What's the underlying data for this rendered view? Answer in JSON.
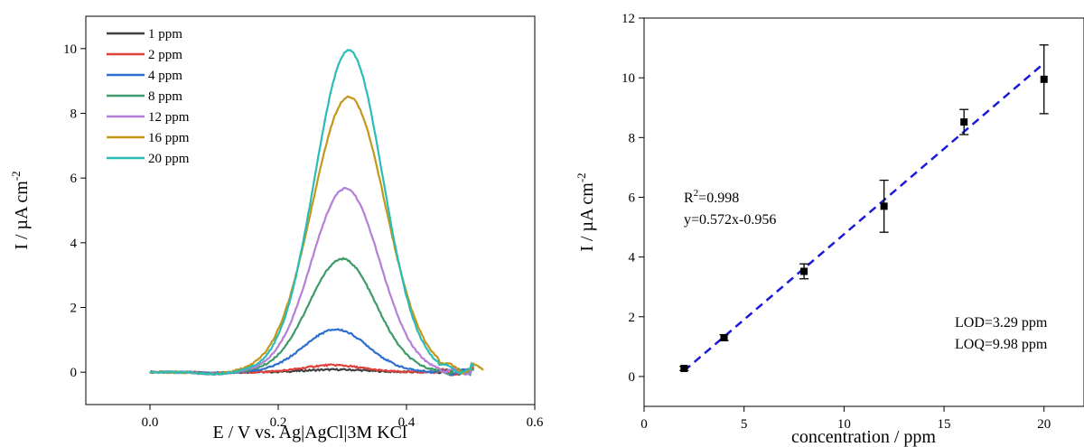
{
  "chart_data": [
    {
      "type": "line",
      "xlabel": "E / V  vs. Ag|AgCl|3M KCl",
      "ylabel": "I / µA cm",
      "ylabel_superscript": "-2",
      "xlim": [
        -0.1,
        0.6
      ],
      "ylim": [
        -1,
        11
      ],
      "xticks": [
        "0.0",
        "0.2",
        "0.4",
        "0.6"
      ],
      "yticks": [
        "0",
        "2",
        "4",
        "6",
        "8",
        "10"
      ],
      "legend_position": "top-left",
      "series": [
        {
          "name": "1 ppm",
          "color": "#404040",
          "peak_x": 0.29,
          "peak_y": 0.08,
          "width": 0.05
        },
        {
          "name": "2 ppm",
          "color": "#e0403a",
          "peak_x": 0.285,
          "peak_y": 0.22,
          "width": 0.045
        },
        {
          "name": "4 ppm",
          "color": "#2e6fd0",
          "peak_x": 0.29,
          "peak_y": 1.32,
          "width": 0.05
        },
        {
          "name": "8 ppm",
          "color": "#3f9a6a",
          "peak_x": 0.3,
          "peak_y": 3.5,
          "width": 0.052
        },
        {
          "name": "12 ppm",
          "color": "#b37fd9",
          "peak_x": 0.305,
          "peak_y": 5.68,
          "width": 0.053
        },
        {
          "name": "16 ppm",
          "color": "#c4961a",
          "peak_x": 0.31,
          "peak_y": 8.52,
          "width": 0.057
        },
        {
          "name": "20 ppm",
          "color": "#2abcb6",
          "peak_x": 0.31,
          "peak_y": 9.95,
          "width": 0.053
        }
      ]
    },
    {
      "type": "scatter",
      "xlabel": "concentration / ppm",
      "ylabel": "I / µA cm",
      "ylabel_superscript": "-2",
      "xlim": [
        0,
        22
      ],
      "ylim": [
        -1,
        12
      ],
      "xticks": [
        "0",
        "5",
        "10",
        "15",
        "20"
      ],
      "yticks": [
        "0",
        "2",
        "4",
        "6",
        "8",
        "10",
        "12"
      ],
      "points": [
        {
          "x": 2,
          "y": 0.27,
          "err": 0.07
        },
        {
          "x": 4,
          "y": 1.3,
          "err": 0.1
        },
        {
          "x": 8,
          "y": 3.52,
          "err": 0.25
        },
        {
          "x": 12,
          "y": 5.7,
          "err": 0.87
        },
        {
          "x": 16,
          "y": 8.52,
          "err": 0.42
        },
        {
          "x": 20,
          "y": 9.95,
          "err": 1.15
        }
      ],
      "fit": {
        "slope": 0.572,
        "intercept": -0.956,
        "x_range": [
          2,
          20
        ],
        "color": "#1a1adb"
      },
      "annotations": {
        "r2_base": "R",
        "r2_sup": "2",
        "r2_value": "=0.998",
        "equation": "y=0.572x-0.956",
        "lod": "LOD=3.29 ppm",
        "loq": "LOQ=9.98 ppm"
      }
    }
  ]
}
